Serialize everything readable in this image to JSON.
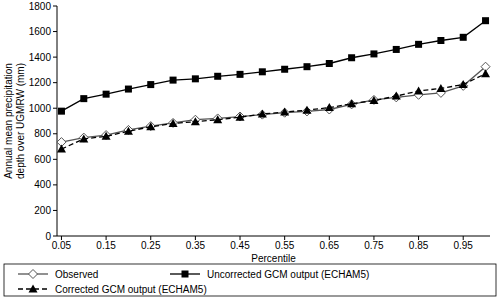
{
  "chart_data": {
    "type": "line",
    "x_label": "Percentile",
    "y_label": "Annual mean precipitation depth over UGMRW (mm)",
    "x": [
      0.05,
      0.1,
      0.15,
      0.2,
      0.25,
      0.3,
      0.35,
      0.4,
      0.45,
      0.5,
      0.55,
      0.6,
      0.65,
      0.7,
      0.75,
      0.8,
      0.85,
      0.9,
      0.95,
      1.0
    ],
    "series": [
      {
        "name": "Observed",
        "color": "#555555",
        "marker": "diamond",
        "line_style": "solid",
        "values": [
          735,
          770,
          790,
          830,
          860,
          885,
          910,
          920,
          935,
          950,
          965,
          975,
          990,
          1030,
          1065,
          1085,
          1105,
          1120,
          1175,
          1325
        ]
      },
      {
        "name": "Uncorrected GCM output (ECHAM5)",
        "color": "#000000",
        "marker": "square",
        "line_style": "solid",
        "values": [
          977,
          1075,
          1110,
          1150,
          1185,
          1220,
          1230,
          1250,
          1265,
          1285,
          1305,
          1325,
          1350,
          1395,
          1425,
          1460,
          1500,
          1530,
          1555,
          1685
        ]
      },
      {
        "name": "Corrected GCM output (ECHAM5)",
        "color": "#000000",
        "marker": "triangle",
        "line_style": "dashed",
        "values": [
          680,
          760,
          780,
          820,
          855,
          880,
          895,
          910,
          930,
          955,
          970,
          985,
          1005,
          1035,
          1060,
          1095,
          1135,
          1155,
          1185,
          1270
        ]
      }
    ],
    "xlim": [
      0.04,
      1.01
    ],
    "xticks": [
      0.05,
      0.15,
      0.25,
      0.35,
      0.45,
      0.55,
      0.65,
      0.75,
      0.85,
      0.95
    ],
    "ylim": [
      0,
      1800
    ],
    "yticks": [
      0,
      200,
      400,
      600,
      800,
      1000,
      1200,
      1400,
      1600,
      1800
    ],
    "grid": false,
    "legend": "bottom"
  }
}
